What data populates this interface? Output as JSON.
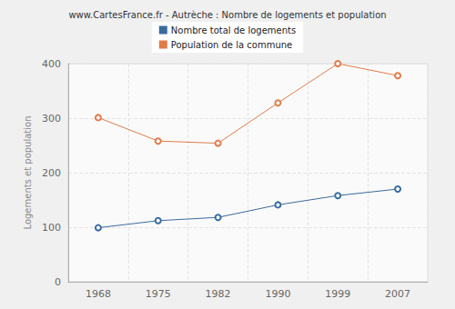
{
  "chart_data": {
    "type": "line",
    "title": "www.CartesFrance.fr - Autrèche : Nombre de logements et population",
    "y_label": "Logements et population",
    "categories": [
      "1968",
      "1975",
      "1982",
      "1990",
      "1999",
      "2007"
    ],
    "series": [
      {
        "name": "Nombre total de logements",
        "color": "#3a6b9e",
        "values": [
          99,
          112,
          118,
          141,
          158,
          170
        ]
      },
      {
        "name": "Population de la commune",
        "color": "#e07b4a",
        "values": [
          301,
          258,
          254,
          328,
          400,
          378
        ]
      }
    ],
    "ylim": [
      0,
      400
    ],
    "yticks": [
      0,
      100,
      200,
      300,
      400
    ],
    "grid": true,
    "legend": "top",
    "marker": "circle"
  }
}
